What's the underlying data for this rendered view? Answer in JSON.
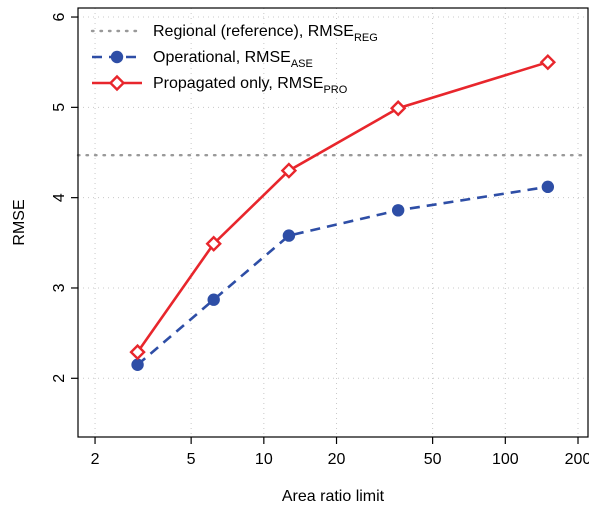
{
  "chart_data": {
    "type": "line",
    "xlabel": "Area ratio limit",
    "ylabel": "RMSE",
    "xscale": "log",
    "xlim": [
      1.7,
      220
    ],
    "ylim": [
      1.35,
      6.1
    ],
    "xticks": [
      2,
      5,
      10,
      20,
      50,
      100,
      200
    ],
    "xtick_labels": [
      "2",
      "5",
      "10",
      "20",
      "50",
      "100",
      "200"
    ],
    "yticks": [
      2,
      3,
      4,
      5,
      6
    ],
    "ytick_labels": [
      "2",
      "3",
      "4",
      "5",
      "6"
    ],
    "grid": true,
    "legend_position": "top-left",
    "reference": {
      "name": "Regional (reference), RMSE",
      "name_sub": "REG",
      "value": 4.47,
      "color": "#999999"
    },
    "series": [
      {
        "name": "Operational, RMSE",
        "name_sub": "ASE",
        "color": "#2e4ea6",
        "marker": "circle",
        "x": [
          3,
          6.2,
          12.7,
          36,
          150
        ],
        "y": [
          2.15,
          2.87,
          3.58,
          3.86,
          4.12
        ]
      },
      {
        "name": "Propagated only, RMSE",
        "name_sub": "PRO",
        "color": "#e8262c",
        "marker": "diamond",
        "x": [
          3,
          6.2,
          12.7,
          36,
          150
        ],
        "y": [
          2.29,
          3.49,
          4.3,
          4.99,
          5.5
        ]
      }
    ]
  }
}
